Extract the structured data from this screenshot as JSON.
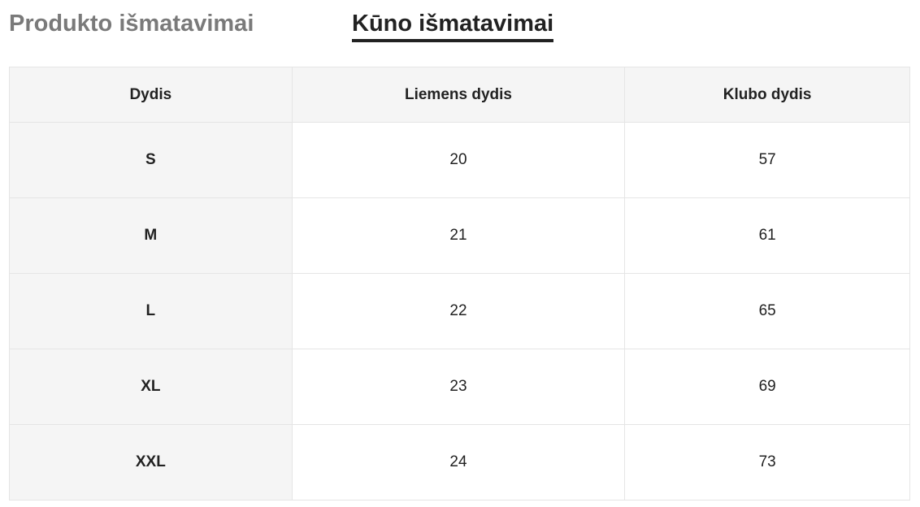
{
  "tabs": [
    {
      "label": "Produkto išmatavimai",
      "active": false
    },
    {
      "label": "Kūno išmatavimai",
      "active": true
    }
  ],
  "table": {
    "headers": [
      "Dydis",
      "Liemens dydis",
      "Klubo dydis"
    ],
    "rows": [
      [
        "S",
        "20",
        "57"
      ],
      [
        "M",
        "21",
        "61"
      ],
      [
        "L",
        "22",
        "65"
      ],
      [
        "XL",
        "23",
        "69"
      ],
      [
        "XXL",
        "24",
        "73"
      ]
    ]
  }
}
